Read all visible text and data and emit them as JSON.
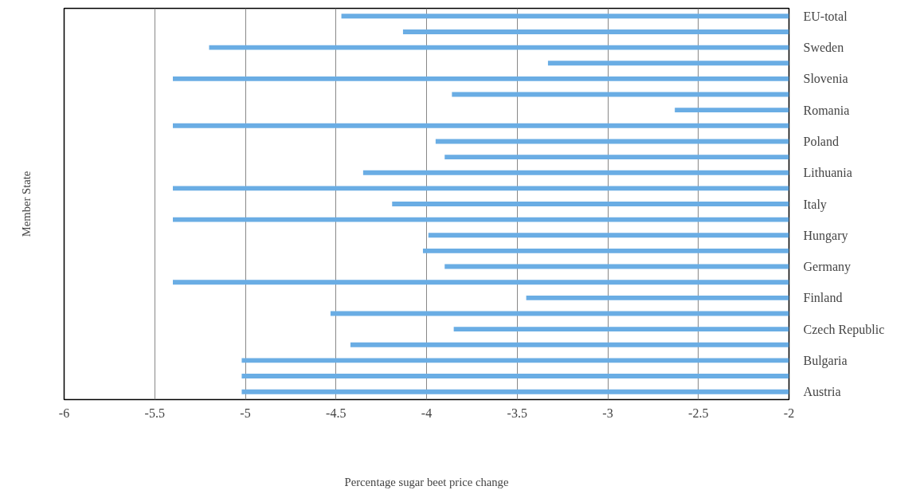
{
  "chart_data": {
    "type": "bar",
    "orientation": "horizontal",
    "xlabel": "Percentage sugar beet price change",
    "ylabel": "Member State",
    "categories": [
      "EU-total",
      null,
      "Sweden",
      null,
      "Slovenia",
      null,
      "Romania",
      null,
      "Poland",
      null,
      "Lithuania",
      null,
      "Italy",
      null,
      "Hungary",
      null,
      "Germany",
      null,
      "Finland",
      null,
      "Czech Republic",
      null,
      "Bulgaria",
      null,
      "Austria"
    ],
    "base": [
      -2,
      -2,
      -2,
      -2,
      -2,
      -2,
      -2,
      -2,
      -2,
      -2,
      -2,
      -2,
      -2,
      -2,
      -2,
      -2,
      -2,
      -2,
      -2,
      -2,
      -2,
      -2,
      -2,
      -2,
      -2
    ],
    "values": [
      -2.47,
      -2.13,
      -3.2,
      -1.33,
      -3.4,
      -1.86,
      -0.63,
      -3.4,
      -1.95,
      -1.9,
      -2.35,
      -3.4,
      -2.19,
      -3.4,
      -1.99,
      -2.02,
      -1.9,
      -3.4,
      -1.45,
      -2.53,
      -1.85,
      -2.42,
      -3.02,
      -3.02,
      -3.02
    ],
    "color": "#6aade4",
    "xlim": [
      -6,
      -2
    ],
    "xticks": [
      -6,
      -5.5,
      -5,
      -4.5,
      -4,
      -3.5,
      -3,
      -2.5,
      -2
    ],
    "grid": "x"
  }
}
